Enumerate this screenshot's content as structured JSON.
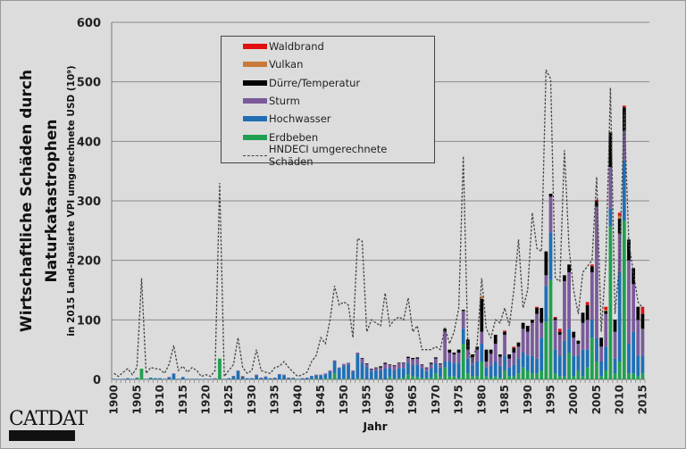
{
  "chart_data": {
    "type": "bar",
    "stacked": true,
    "title": "",
    "ylabel": "Wirtschaftliche Schäden durch Naturkatastrophen",
    "ylabel_sub": "in 2015 Land-basierte VPI umgerechnete USD (10⁹)",
    "xlabel": "Jahr",
    "ylim": [
      0,
      600
    ],
    "yticks": [
      0,
      100,
      200,
      300,
      400,
      500,
      600
    ],
    "xrange": [
      1900,
      2015
    ],
    "xticks": [
      1900,
      1905,
      1910,
      1915,
      1920,
      1925,
      1930,
      1935,
      1940,
      1945,
      1950,
      1955,
      1960,
      1965,
      1970,
      1975,
      1980,
      1985,
      1990,
      1995,
      2000,
      2005,
      2010,
      2015
    ],
    "grid": "horizontal",
    "legend_position": "top-center",
    "series": [
      {
        "name": "Erdbeben",
        "color": "#1fa050",
        "values": [
          0,
          0,
          0,
          0,
          0,
          2,
          18,
          0,
          1,
          0,
          0,
          0,
          0,
          0,
          0,
          0,
          0,
          0,
          0,
          0,
          0,
          0,
          0,
          35,
          0,
          0,
          0,
          0,
          0,
          0,
          0,
          0,
          0,
          0,
          0,
          0,
          0,
          0,
          0,
          1,
          0,
          0,
          0,
          1,
          1,
          0,
          1,
          2,
          10,
          0,
          1,
          1,
          0,
          2,
          1,
          0,
          0,
          1,
          0,
          0,
          4,
          1,
          2,
          3,
          8,
          5,
          4,
          2,
          2,
          3,
          10,
          4,
          20,
          5,
          5,
          3,
          60,
          10,
          5,
          5,
          30,
          5,
          3,
          5,
          3,
          15,
          5,
          5,
          10,
          20,
          15,
          10,
          10,
          15,
          97,
          167,
          10,
          5,
          5,
          45,
          5,
          15,
          5,
          20,
          70,
          30,
          5,
          15,
          257,
          10,
          30,
          267,
          10,
          10,
          5,
          10
        ]
      },
      {
        "name": "Hochwasser",
        "color": "#1f6fb5",
        "values": [
          1,
          0.5,
          0.5,
          2,
          1,
          1,
          0,
          1,
          2,
          2,
          2,
          1,
          3,
          9,
          1,
          4,
          1,
          1,
          1,
          0.5,
          1,
          1,
          1,
          0,
          1,
          2,
          5,
          14,
          3,
          2,
          2,
          7,
          2,
          4,
          2,
          2,
          8,
          7,
          2,
          1,
          1,
          2,
          2,
          4,
          6,
          7,
          7,
          11,
          20,
          18,
          22,
          24,
          13,
          40,
          26,
          21,
          14,
          14,
          15,
          18,
          14,
          14,
          17,
          16,
          20,
          19,
          21,
          16,
          12,
          15,
          17,
          16,
          10,
          25,
          22,
          25,
          25,
          25,
          20,
          25,
          30,
          15,
          20,
          25,
          20,
          25,
          15,
          20,
          25,
          25,
          25,
          30,
          25,
          55,
          60,
          80,
          40,
          35,
          60,
          40,
          35,
          25,
          45,
          30,
          30,
          40,
          25,
          40,
          30,
          25,
          150,
          100,
          50,
          70,
          35,
          30
        ]
      },
      {
        "name": "Sturm",
        "color": "#7a5a9a",
        "values": [
          0,
          0,
          0.5,
          0,
          0,
          0,
          0,
          0,
          0,
          0,
          0,
          0,
          1,
          1,
          0,
          0,
          0,
          0,
          0,
          0,
          0,
          0,
          1,
          0,
          0,
          0,
          1,
          1,
          1,
          0,
          0,
          1,
          1,
          1,
          0,
          1,
          1,
          1,
          1,
          1,
          0,
          0,
          1,
          1,
          1,
          1,
          2,
          2,
          2,
          2,
          3,
          3,
          2,
          3,
          8,
          5,
          3,
          4,
          5,
          8,
          6,
          8,
          8,
          8,
          8,
          10,
          10,
          6,
          5,
          8,
          8,
          6,
          50,
          15,
          15,
          17,
          30,
          15,
          12,
          20,
          20,
          10,
          20,
          30,
          15,
          35,
          15,
          20,
          20,
          40,
          40,
          55,
          75,
          25,
          18,
          60,
          50,
          35,
          100,
          95,
          30,
          20,
          45,
          50,
          80,
          220,
          25,
          55,
          70,
          45,
          65,
          50,
          140,
          80,
          60,
          45
        ]
      },
      {
        "name": "Dürre/Temperatur",
        "color": "#000000",
        "values": [
          0,
          0,
          0,
          0,
          0,
          0,
          0,
          0,
          0,
          0,
          0,
          0,
          0,
          0,
          0,
          0,
          0,
          0,
          0,
          0,
          0,
          0,
          0,
          0,
          0,
          0,
          0,
          0,
          1,
          0,
          0,
          0,
          0,
          0,
          0,
          0,
          0,
          0,
          0,
          0,
          0,
          0,
          0,
          0,
          0,
          0,
          0,
          0,
          0,
          0,
          0,
          0,
          0,
          0,
          1,
          1,
          1,
          1,
          2,
          2,
          1,
          1,
          1,
          1,
          2,
          2,
          2,
          1,
          1,
          2,
          2,
          1,
          5,
          5,
          3,
          5,
          2,
          17,
          5,
          5,
          55,
          20,
          7,
          15,
          4,
          5,
          7,
          8,
          7,
          10,
          10,
          5,
          10,
          25,
          40,
          5,
          3,
          5,
          10,
          13,
          10,
          5,
          17,
          25,
          10,
          10,
          15,
          5,
          58,
          20,
          25,
          40,
          35,
          27,
          22,
          25
        ]
      },
      {
        "name": "Vulkan",
        "color": "#c87a3a",
        "values": [
          0,
          0,
          0,
          0,
          0,
          0,
          0,
          0,
          0,
          0,
          0,
          0,
          0,
          0,
          0,
          0,
          0,
          0,
          0,
          0,
          0,
          0,
          0,
          0,
          0,
          0,
          0,
          0,
          0,
          0,
          0,
          0,
          0,
          0,
          0,
          0,
          0,
          0,
          0,
          0,
          0,
          0,
          0,
          0,
          0,
          0,
          0,
          0,
          0,
          0,
          0,
          0,
          0,
          0,
          0,
          0,
          0,
          0,
          0,
          0,
          0,
          0,
          0,
          0,
          0,
          0,
          0,
          0,
          0,
          0,
          0,
          0,
          0,
          0,
          0,
          0,
          0,
          0,
          0,
          0,
          5,
          0,
          0,
          0,
          0,
          0,
          0,
          0,
          0,
          0,
          0,
          0,
          0,
          0,
          0,
          0,
          0,
          0,
          0,
          0,
          0,
          0,
          0,
          0,
          0,
          0,
          0,
          2,
          0,
          0,
          5,
          0,
          0,
          0,
          0,
          0
        ]
      },
      {
        "name": "Waldbrand",
        "color": "#e01010",
        "values": [
          0,
          0,
          0,
          0,
          0,
          0,
          0,
          0,
          0,
          0,
          0,
          0,
          0,
          0,
          0,
          0,
          0,
          0,
          0,
          0,
          0,
          0,
          0,
          0,
          0,
          0,
          0,
          0,
          0,
          0,
          0,
          0,
          0,
          0,
          0,
          0,
          0,
          0,
          0,
          0,
          0,
          0,
          0,
          0,
          0,
          0,
          0,
          0,
          0,
          0,
          0,
          0,
          0,
          0,
          0,
          0,
          0,
          0,
          0,
          0,
          0,
          0,
          0,
          0,
          0,
          0,
          0,
          0,
          0,
          0,
          0,
          0,
          0,
          0,
          0,
          0,
          0,
          0,
          0,
          0,
          0,
          0,
          0,
          0,
          0,
          2,
          0,
          2,
          0,
          0,
          0,
          0,
          2,
          0,
          0,
          0,
          2,
          5,
          0,
          0,
          0,
          0,
          0,
          5,
          3,
          2,
          0,
          5,
          0,
          0,
          5,
          3,
          0,
          0,
          0,
          12
        ]
      }
    ],
    "line_series": {
      "name": "HNDECI umgerechnete Schäden",
      "style": "dashed",
      "color": "#444444",
      "values": [
        10,
        5,
        12,
        18,
        8,
        20,
        170,
        10,
        20,
        18,
        17,
        10,
        25,
        57,
        15,
        22,
        12,
        20,
        15,
        5,
        8,
        5,
        15,
        330,
        5,
        15,
        25,
        70,
        20,
        10,
        15,
        50,
        15,
        12,
        10,
        20,
        22,
        30,
        20,
        12,
        5,
        8,
        12,
        30,
        40,
        70,
        60,
        100,
        157,
        125,
        130,
        125,
        70,
        237,
        232,
        80,
        100,
        95,
        90,
        145,
        90,
        100,
        105,
        100,
        137,
        80,
        90,
        50,
        50,
        50,
        55,
        50,
        87,
        60,
        80,
        120,
        375,
        50,
        30,
        60,
        170,
        85,
        70,
        100,
        95,
        120,
        90,
        150,
        235,
        120,
        150,
        280,
        220,
        215,
        520,
        505,
        170,
        165,
        385,
        220,
        150,
        110,
        180,
        190,
        200,
        340,
        80,
        200,
        490,
        110,
        200,
        450,
        230,
        180,
        130,
        120
      ]
    }
  },
  "legend": {
    "items": [
      {
        "label": "Waldbrand",
        "color": "#e01010"
      },
      {
        "label": "Vulkan",
        "color": "#c87a3a"
      },
      {
        "label": "Dürre/Temperatur",
        "color": "#000000"
      },
      {
        "label": "Sturm",
        "color": "#7a5a9a"
      },
      {
        "label": "Hochwasser",
        "color": "#1f6fb5"
      },
      {
        "label": "Erdbeben",
        "color": "#1fa050"
      }
    ],
    "line_label": "HNDECI umgerechnete Schäden"
  },
  "titles": {
    "y_line1": "Wirtschaftliche Schäden durch",
    "y_line2": "Naturkatastrophen",
    "y_sub": "in 2015 Land-basierte VPI umgerechnete USD (10⁹)",
    "x": "Jahr"
  },
  "logo": {
    "text": "CATDAT"
  }
}
